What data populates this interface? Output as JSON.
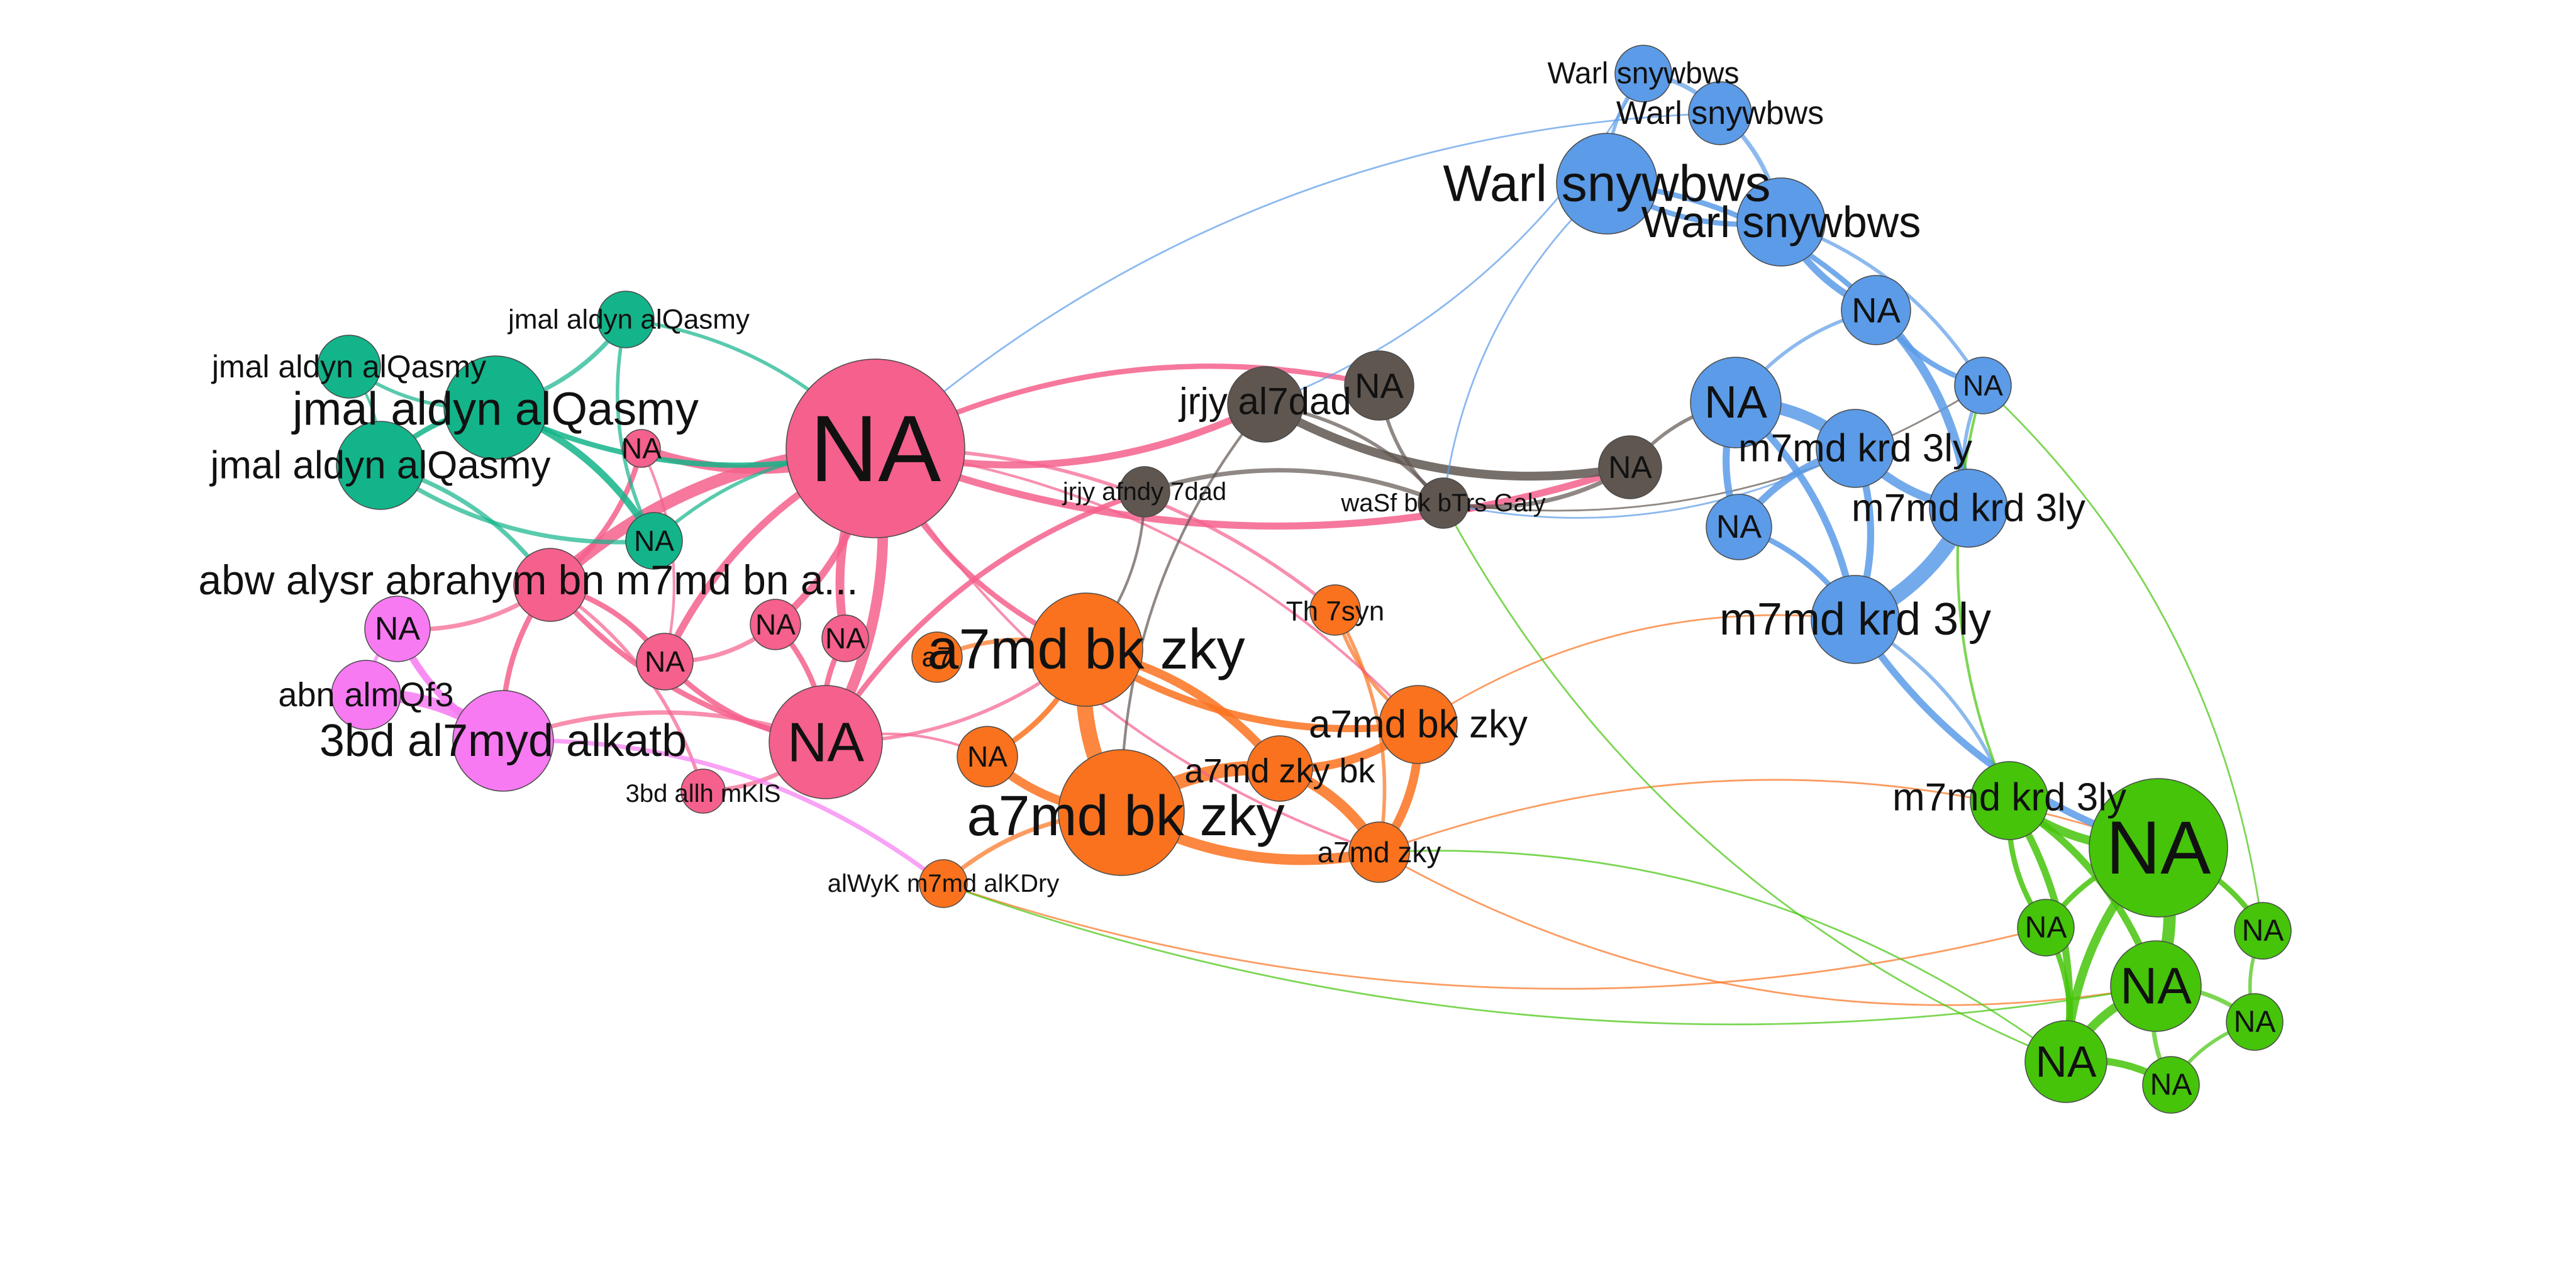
{
  "graph": {
    "groups": [
      {
        "id": "pink",
        "color": "#F5608C"
      },
      {
        "id": "teal",
        "color": "#13B48A"
      },
      {
        "id": "magenta",
        "color": "#F77AF2"
      },
      {
        "id": "orange",
        "color": "#FA721E"
      },
      {
        "id": "darkgray",
        "color": "#5F5650"
      },
      {
        "id": "blue",
        "color": "#5B9BE7"
      },
      {
        "id": "green",
        "color": "#45C40A"
      }
    ],
    "nodes": [
      {
        "id": "pk_big",
        "group": "pink",
        "label": "NA"
      },
      {
        "id": "pk_abw",
        "group": "pink",
        "label": "abw alysr abrahym bn m7md bn a..."
      },
      {
        "id": "pk_na2",
        "group": "pink",
        "label": "NA"
      },
      {
        "id": "pk_na1",
        "group": "pink",
        "label": "NA"
      },
      {
        "id": "pk_na4",
        "group": "pink",
        "label": "NA"
      },
      {
        "id": "pk_na5",
        "group": "pink",
        "label": "NA"
      },
      {
        "id": "pk_na3",
        "group": "pink",
        "label": "NA"
      },
      {
        "id": "pk_3bd",
        "group": "pink",
        "label": "3bd allh  mKlS"
      },
      {
        "id": "tl_top",
        "group": "teal",
        "label": "jmal aldyn  alQasmy"
      },
      {
        "id": "tl_2",
        "group": "teal",
        "label": "jmal aldyn  alQasmy"
      },
      {
        "id": "tl_big",
        "group": "teal",
        "label": "jmal aldyn  alQasmy"
      },
      {
        "id": "tl_4",
        "group": "teal",
        "label": "jmal aldyn  alQasmy"
      },
      {
        "id": "tl_na",
        "group": "teal",
        "label": "NA"
      },
      {
        "id": "mg_na",
        "group": "magenta",
        "label": "NA"
      },
      {
        "id": "mg_abn",
        "group": "magenta",
        "label": "abn  almQf3"
      },
      {
        "id": "mg_3bd",
        "group": "magenta",
        "label": "3bd al7myd  alkatb"
      },
      {
        "id": "or_big1",
        "group": "orange",
        "label": "a7md bk zky"
      },
      {
        "id": "or_big2",
        "group": "orange",
        "label": "a7md bk zky"
      },
      {
        "id": "or_a",
        "group": "orange",
        "label": "a7"
      },
      {
        "id": "or_na",
        "group": "orange",
        "label": "NA"
      },
      {
        "id": "or_zkybk",
        "group": "orange",
        "label": "a7md  zky bk"
      },
      {
        "id": "or_bkzky",
        "group": "orange",
        "label": "a7md  bk  zky"
      },
      {
        "id": "or_zky",
        "group": "orange",
        "label": "a7md  zky"
      },
      {
        "id": "or_th",
        "group": "orange",
        "label": "Th  7syn"
      },
      {
        "id": "or_alwyk",
        "group": "orange",
        "label": "alWyK m7md  alKDry"
      },
      {
        "id": "dg_jrjy",
        "group": "darkgray",
        "label": "jrjy  al7dad"
      },
      {
        "id": "dg_na",
        "group": "darkgray",
        "label": "NA"
      },
      {
        "id": "dg_afndy",
        "group": "darkgray",
        "label": "jrjy afndy 7dad"
      },
      {
        "id": "dg_wasf",
        "group": "darkgray",
        "label": "waSf bk bTrs Galy"
      },
      {
        "id": "dg_na2",
        "group": "darkgray",
        "label": "NA"
      },
      {
        "id": "bl_w1",
        "group": "blue",
        "label": "Warl  snywbws"
      },
      {
        "id": "bl_w2",
        "group": "blue",
        "label": "Warl  snywbws"
      },
      {
        "id": "bl_w3",
        "group": "blue",
        "label": "Warl  snywbws"
      },
      {
        "id": "bl_w4",
        "group": "blue",
        "label": "Warl  snywbws"
      },
      {
        "id": "bl_na1",
        "group": "blue",
        "label": "NA"
      },
      {
        "id": "bl_na2",
        "group": "blue",
        "label": "NA"
      },
      {
        "id": "bl_big",
        "group": "blue",
        "label": "NA"
      },
      {
        "id": "bl_m1",
        "group": "blue",
        "label": "m7md  krd 3ly"
      },
      {
        "id": "bl_m2",
        "group": "blue",
        "label": "m7md  krd 3ly"
      },
      {
        "id": "bl_na3",
        "group": "blue",
        "label": "NA"
      },
      {
        "id": "bl_m3",
        "group": "blue",
        "label": "m7md  krd 3ly"
      },
      {
        "id": "gr_m",
        "group": "green",
        "label": "m7md  krd 3ly"
      },
      {
        "id": "gr_big",
        "group": "green",
        "label": "NA"
      },
      {
        "id": "gr_na1",
        "group": "green",
        "label": "NA"
      },
      {
        "id": "gr_na2",
        "group": "green",
        "label": "NA"
      },
      {
        "id": "gr_mid",
        "group": "green",
        "label": "NA"
      },
      {
        "id": "gr_na3",
        "group": "green",
        "label": "NA"
      },
      {
        "id": "gr_na4",
        "group": "green",
        "label": "NA"
      },
      {
        "id": "gr_na5",
        "group": "green",
        "label": "NA"
      }
    ],
    "edges": [
      {
        "source": "pk_big",
        "target": "pk_abw",
        "weight": 14
      },
      {
        "source": "pk_big",
        "target": "pk_na2",
        "weight": 10
      },
      {
        "source": "pk_big",
        "target": "pk_na1",
        "weight": 8
      },
      {
        "source": "pk_big",
        "target": "pk_na4",
        "weight": 8
      },
      {
        "source": "pk_big",
        "target": "pk_na5",
        "weight": 10
      },
      {
        "source": "pk_big",
        "target": "pk_na3",
        "weight": 12
      },
      {
        "source": "pk_abw",
        "target": "pk_na2",
        "weight": 6
      },
      {
        "source": "pk_abw",
        "target": "pk_na1",
        "weight": 6
      },
      {
        "source": "pk_abw",
        "target": "pk_na3",
        "weight": 6
      },
      {
        "source": "pk_abw",
        "target": "pk_3bd",
        "weight": 4
      },
      {
        "source": "pk_abw",
        "target": "mg_3bd",
        "weight": 6
      },
      {
        "source": "pk_abw",
        "target": "mg_na",
        "weight": 5
      },
      {
        "source": "pk_na1",
        "target": "pk_na3",
        "weight": 6
      },
      {
        "source": "pk_na4",
        "target": "pk_na3",
        "weight": 6
      },
      {
        "source": "pk_na5",
        "target": "pk_na3",
        "weight": 6
      },
      {
        "source": "pk_na3",
        "target": "pk_3bd",
        "weight": 5
      },
      {
        "source": "pk_na3",
        "target": "mg_3bd",
        "weight": 5
      },
      {
        "source": "pk_na2",
        "target": "pk_na1",
        "weight": 3
      },
      {
        "source": "pk_na1",
        "target": "pk_na4",
        "weight": 5
      },
      {
        "source": "tl_top",
        "target": "tl_big",
        "weight": 5
      },
      {
        "source": "tl_top",
        "target": "tl_na",
        "weight": 4
      },
      {
        "source": "tl_top",
        "target": "pk_big",
        "weight": 4
      },
      {
        "source": "tl_2",
        "target": "tl_big",
        "weight": 4
      },
      {
        "source": "tl_2",
        "target": "tl_4",
        "weight": 3
      },
      {
        "source": "tl_big",
        "target": "tl_4",
        "weight": 6
      },
      {
        "source": "tl_big",
        "target": "tl_na",
        "weight": 8
      },
      {
        "source": "tl_4",
        "target": "tl_na",
        "weight": 5
      },
      {
        "source": "tl_4",
        "target": "pk_abw",
        "weight": 5
      },
      {
        "source": "tl_big",
        "target": "pk_big",
        "weight": 6
      },
      {
        "source": "tl_na",
        "target": "pk_big",
        "weight": 4
      },
      {
        "source": "mg_na",
        "target": "mg_3bd",
        "weight": 8
      },
      {
        "source": "mg_abn",
        "target": "mg_3bd",
        "weight": 14
      },
      {
        "source": "mg_na",
        "target": "mg_abn",
        "weight": 4
      },
      {
        "source": "mg_3bd",
        "target": "or_alwyk",
        "weight": 5
      },
      {
        "source": "or_big1",
        "target": "or_big2",
        "weight": 18
      },
      {
        "source": "or_big1",
        "target": "or_zkybk",
        "weight": 10
      },
      {
        "source": "or_big1",
        "target": "or_bkzky",
        "weight": 8
      },
      {
        "source": "or_big1",
        "target": "or_na",
        "weight": 6
      },
      {
        "source": "or_big1",
        "target": "or_a",
        "weight": 5
      },
      {
        "source": "or_big2",
        "target": "or_zkybk",
        "weight": 16
      },
      {
        "source": "or_big2",
        "target": "or_zky",
        "weight": 12
      },
      {
        "source": "or_big2",
        "target": "or_na",
        "weight": 10
      },
      {
        "source": "or_big2",
        "target": "or_alwyk",
        "weight": 5
      },
      {
        "source": "or_zkybk",
        "target": "or_zky",
        "weight": 12
      },
      {
        "source": "or_zkybk",
        "target": "or_bkzky",
        "weight": 10
      },
      {
        "source": "or_bkzky",
        "target": "or_zky",
        "weight": 10
      },
      {
        "source": "or_th",
        "target": "or_bkzky",
        "weight": 4
      },
      {
        "source": "or_th",
        "target": "or_zky",
        "weight": 4
      },
      {
        "source": "pk_big",
        "target": "or_big1",
        "weight": 6
      },
      {
        "source": "pk_big",
        "target": "or_th",
        "weight": 4
      },
      {
        "source": "pk_big",
        "target": "or_zky",
        "weight": 3
      },
      {
        "source": "pk_big",
        "target": "or_bkzky",
        "weight": 3
      },
      {
        "source": "pk_na3",
        "target": "or_big1",
        "weight": 4
      },
      {
        "source": "pk_na3",
        "target": "or_na",
        "weight": 3
      },
      {
        "source": "or_zky",
        "target": "gr_mid",
        "weight": 2
      },
      {
        "source": "or_zky",
        "target": "gr_big",
        "weight": 2
      },
      {
        "source": "or_alwyk",
        "target": "gr_na1",
        "weight": 2
      },
      {
        "source": "or_bkzky",
        "target": "bl_m3",
        "weight": 2
      },
      {
        "source": "pk_big",
        "target": "dg_jrjy",
        "weight": 8
      },
      {
        "source": "pk_big",
        "target": "dg_na",
        "weight": 6
      },
      {
        "source": "pk_big",
        "target": "dg_na2",
        "weight": 8
      },
      {
        "source": "pk_na3",
        "target": "dg_afndy",
        "weight": 6
      },
      {
        "source": "dg_jrjy",
        "target": "dg_na2",
        "weight": 10
      },
      {
        "source": "dg_jrjy",
        "target": "dg_wasf",
        "weight": 4
      },
      {
        "source": "dg_na",
        "target": "dg_wasf",
        "weight": 4
      },
      {
        "source": "dg_afndy",
        "target": "dg_wasf",
        "weight": 5
      },
      {
        "source": "dg_wasf",
        "target": "dg_na2",
        "weight": 5
      },
      {
        "source": "dg_na2",
        "target": "bl_big",
        "weight": 4
      },
      {
        "source": "dg_wasf",
        "target": "bl_na2",
        "weight": 2
      },
      {
        "source": "dg_afndy",
        "target": "or_big1",
        "weight": 3
      },
      {
        "source": "dg_jrjy",
        "target": "or_big2",
        "weight": 3
      },
      {
        "source": "bl_w1",
        "target": "bl_w2",
        "weight": 5
      },
      {
        "source": "bl_w1",
        "target": "bl_w3",
        "weight": 4
      },
      {
        "source": "bl_w2",
        "target": "bl_w4",
        "weight": 5
      },
      {
        "source": "bl_w3",
        "target": "bl_w4",
        "weight": 6
      },
      {
        "source": "bl_w3",
        "target": "bl_na1",
        "weight": 6
      },
      {
        "source": "bl_w4",
        "target": "bl_na1",
        "weight": 8
      },
      {
        "source": "bl_w4",
        "target": "bl_na2",
        "weight": 4
      },
      {
        "source": "bl_na1",
        "target": "bl_na2",
        "weight": 6
      },
      {
        "source": "bl_na1",
        "target": "bl_m2",
        "weight": 10
      },
      {
        "source": "bl_na1",
        "target": "bl_big",
        "weight": 4
      },
      {
        "source": "bl_big",
        "target": "bl_m1",
        "weight": 14
      },
      {
        "source": "bl_big",
        "target": "bl_na3",
        "weight": 8
      },
      {
        "source": "bl_big",
        "target": "bl_m3",
        "weight": 8
      },
      {
        "source": "bl_m1",
        "target": "bl_m2",
        "weight": 10
      },
      {
        "source": "bl_m1",
        "target": "bl_m3",
        "weight": 8
      },
      {
        "source": "bl_m1",
        "target": "bl_na3",
        "weight": 8
      },
      {
        "source": "bl_m2",
        "target": "bl_m3",
        "weight": 18
      },
      {
        "source": "bl_na2",
        "target": "bl_m2",
        "weight": 4
      },
      {
        "source": "bl_na3",
        "target": "bl_m3",
        "weight": 6
      },
      {
        "source": "bl_m3",
        "target": "gr_big",
        "weight": 8
      },
      {
        "source": "bl_m3",
        "target": "gr_m",
        "weight": 4
      },
      {
        "source": "bl_w3",
        "target": "dg_wasf",
        "weight": 2
      },
      {
        "source": "bl_w1",
        "target": "dg_jrjy",
        "weight": 2
      },
      {
        "source": "bl_w2",
        "target": "pk_big",
        "weight": 2
      },
      {
        "source": "bl_m1",
        "target": "dg_wasf",
        "weight": 2
      },
      {
        "source": "gr_m",
        "target": "gr_big",
        "weight": 10
      },
      {
        "source": "gr_big",
        "target": "gr_mid",
        "weight": 14
      },
      {
        "source": "gr_big",
        "target": "gr_na1",
        "weight": 6
      },
      {
        "source": "gr_big",
        "target": "gr_na2",
        "weight": 6
      },
      {
        "source": "gr_big",
        "target": "gr_na4",
        "weight": 10
      },
      {
        "source": "gr_m",
        "target": "gr_na4",
        "weight": 8
      },
      {
        "source": "gr_m",
        "target": "gr_na1",
        "weight": 6
      },
      {
        "source": "gr_m",
        "target": "gr_mid",
        "weight": 8
      },
      {
        "source": "gr_mid",
        "target": "gr_na4",
        "weight": 10
      },
      {
        "source": "gr_mid",
        "target": "gr_na3",
        "weight": 5
      },
      {
        "source": "gr_mid",
        "target": "gr_na5",
        "weight": 5
      },
      {
        "source": "gr_na4",
        "target": "gr_na5",
        "weight": 8
      },
      {
        "source": "gr_na2",
        "target": "gr_na3",
        "weight": 4
      },
      {
        "source": "gr_na1",
        "target": "gr_na4",
        "weight": 6
      },
      {
        "source": "gr_na3",
        "target": "gr_na5",
        "weight": 4
      },
      {
        "source": "gr_m",
        "target": "bl_na2",
        "weight": 3
      },
      {
        "source": "gr_na2",
        "target": "bl_na2",
        "weight": 2
      },
      {
        "source": "gr_na4",
        "target": "dg_wasf",
        "weight": 2
      },
      {
        "source": "gr_na4",
        "target": "or_zky",
        "weight": 2
      },
      {
        "source": "gr_mid",
        "target": "or_alwyk",
        "weight": 2
      }
    ]
  }
}
